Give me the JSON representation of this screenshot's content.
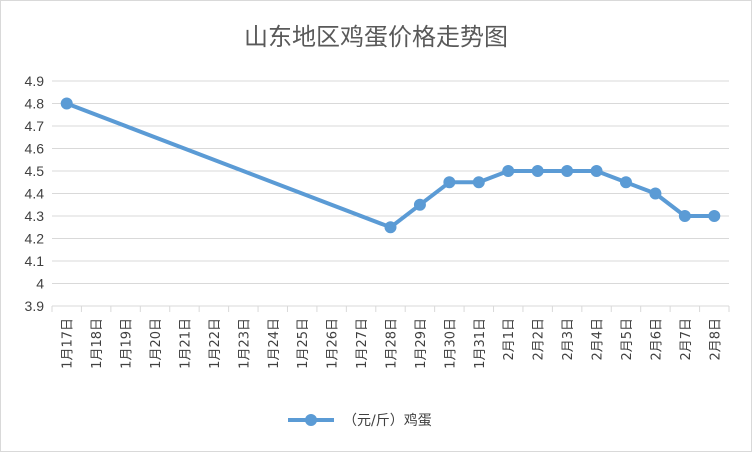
{
  "chart_data": {
    "type": "line",
    "title": "山东地区鸡蛋价格走势图",
    "xlabel": "",
    "ylabel": "",
    "categories": [
      "1月17日",
      "1月18日",
      "1月19日",
      "1月20日",
      "1月21日",
      "1月22日",
      "1月23日",
      "1月24日",
      "1月25日",
      "1月26日",
      "1月27日",
      "1月28日",
      "1月29日",
      "1月30日",
      "1月31日",
      "2月1日",
      "2月2日",
      "2月3日",
      "2月4日",
      "2月5日",
      "2月6日",
      "2月7日",
      "2月8日"
    ],
    "ylim": [
      3.9,
      4.9
    ],
    "yticks": [
      "3.9",
      "4",
      "4.1",
      "4.2",
      "4.3",
      "4.4",
      "4.5",
      "4.6",
      "4.7",
      "4.8",
      "4.9"
    ],
    "grid": true,
    "legend_position": "bottom",
    "series": [
      {
        "name": "（元/斤）鸡蛋",
        "color": "#5b9bd5",
        "values": [
          4.8,
          null,
          null,
          null,
          null,
          null,
          null,
          null,
          null,
          null,
          null,
          4.25,
          4.35,
          4.45,
          4.45,
          4.5,
          4.5,
          4.5,
          4.5,
          4.45,
          4.4,
          4.3,
          4.3
        ]
      }
    ]
  }
}
